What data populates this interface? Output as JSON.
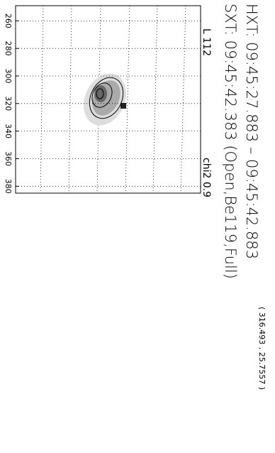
{
  "hxt": "HXT:  09:45:27.883  –  09:45:42.883",
  "sxt": "SXT:  09:45:42.383  (Open,Be119,Full)",
  "coords": "( 316.493 , 25.7557 )",
  "l_label": "L  112",
  "chi2_label": "chi2  0.9",
  "plot": {
    "xlim": [
      249,
      385
    ],
    "xticks": [
      260,
      280,
      300,
      320,
      340,
      360,
      380
    ]
  }
}
